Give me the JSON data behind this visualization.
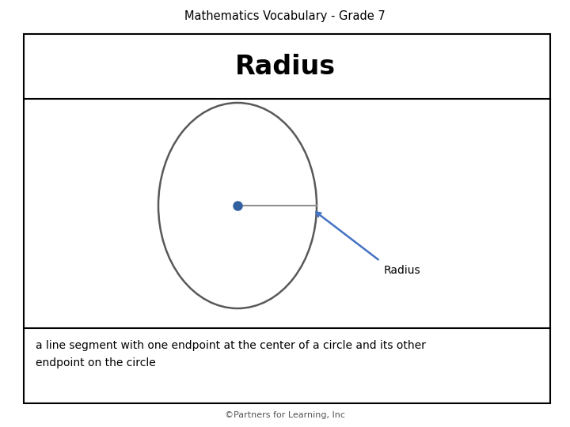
{
  "title": "Mathematics Vocabulary - Grade 7",
  "word": "Radius",
  "definition": "a line segment with one endpoint at the center of a circle and its other\nendpoint on the circle",
  "footer": "©Partners for Learning, Inc",
  "circle_color": "#595959",
  "dot_color": "#3060a0",
  "radius_label": "Radius",
  "outer_box_color": "#000000",
  "title_fontsize": 10.5,
  "word_fontsize": 24,
  "def_fontsize": 10,
  "footer_fontsize": 8,
  "title_font": "sans-serif",
  "word_font": "sans-serif"
}
